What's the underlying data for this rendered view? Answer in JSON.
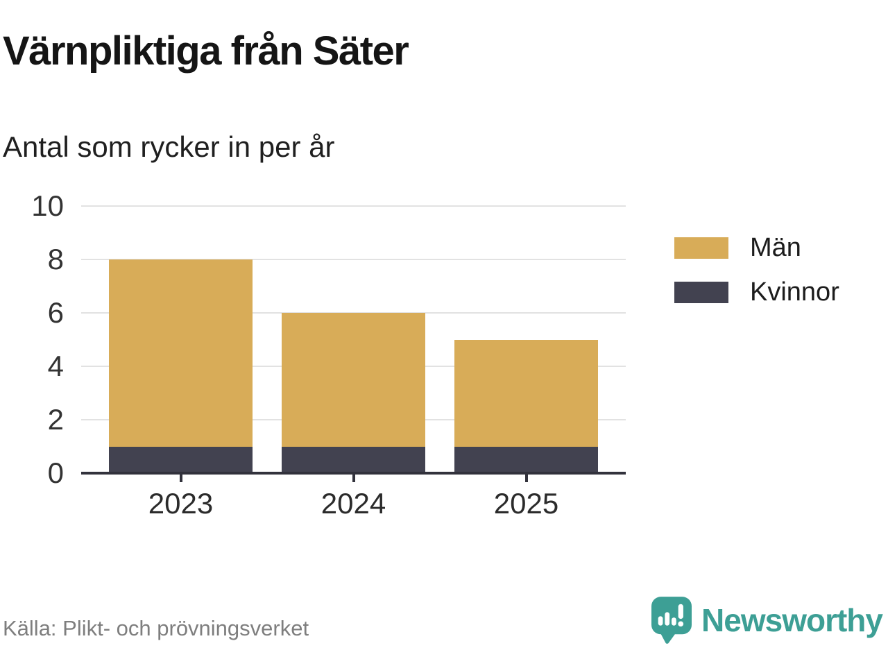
{
  "header": {
    "title": "Värnpliktiga från Säter",
    "subtitle": "Antal som rycker in per år"
  },
  "chart_data": {
    "type": "bar",
    "stacked": true,
    "categories": [
      "2023",
      "2024",
      "2025"
    ],
    "series": [
      {
        "name": "Män",
        "color": "#d8ac58",
        "values": [
          7,
          5,
          4
        ]
      },
      {
        "name": "Kvinnor",
        "color": "#424250",
        "values": [
          1,
          1,
          1
        ]
      }
    ],
    "stack_totals": [
      8,
      6,
      5
    ],
    "yticks": [
      0,
      2,
      4,
      6,
      8,
      10
    ],
    "ylim": [
      0,
      10
    ],
    "grid": true,
    "legend_position": "right",
    "legend_order": [
      "Män",
      "Kvinnor"
    ]
  },
  "colors": {
    "men": "#d8ac58",
    "women": "#424250",
    "gridline": "#e2e2e2",
    "axis": "#32323c",
    "brand_teal": "#3d9f95"
  },
  "footer": {
    "source": "Källa: Plikt- och prövningsverket"
  },
  "brand": {
    "wordmark": "Newsworthy",
    "icon": "newsworthy-speech-bubble-chart-icon"
  }
}
